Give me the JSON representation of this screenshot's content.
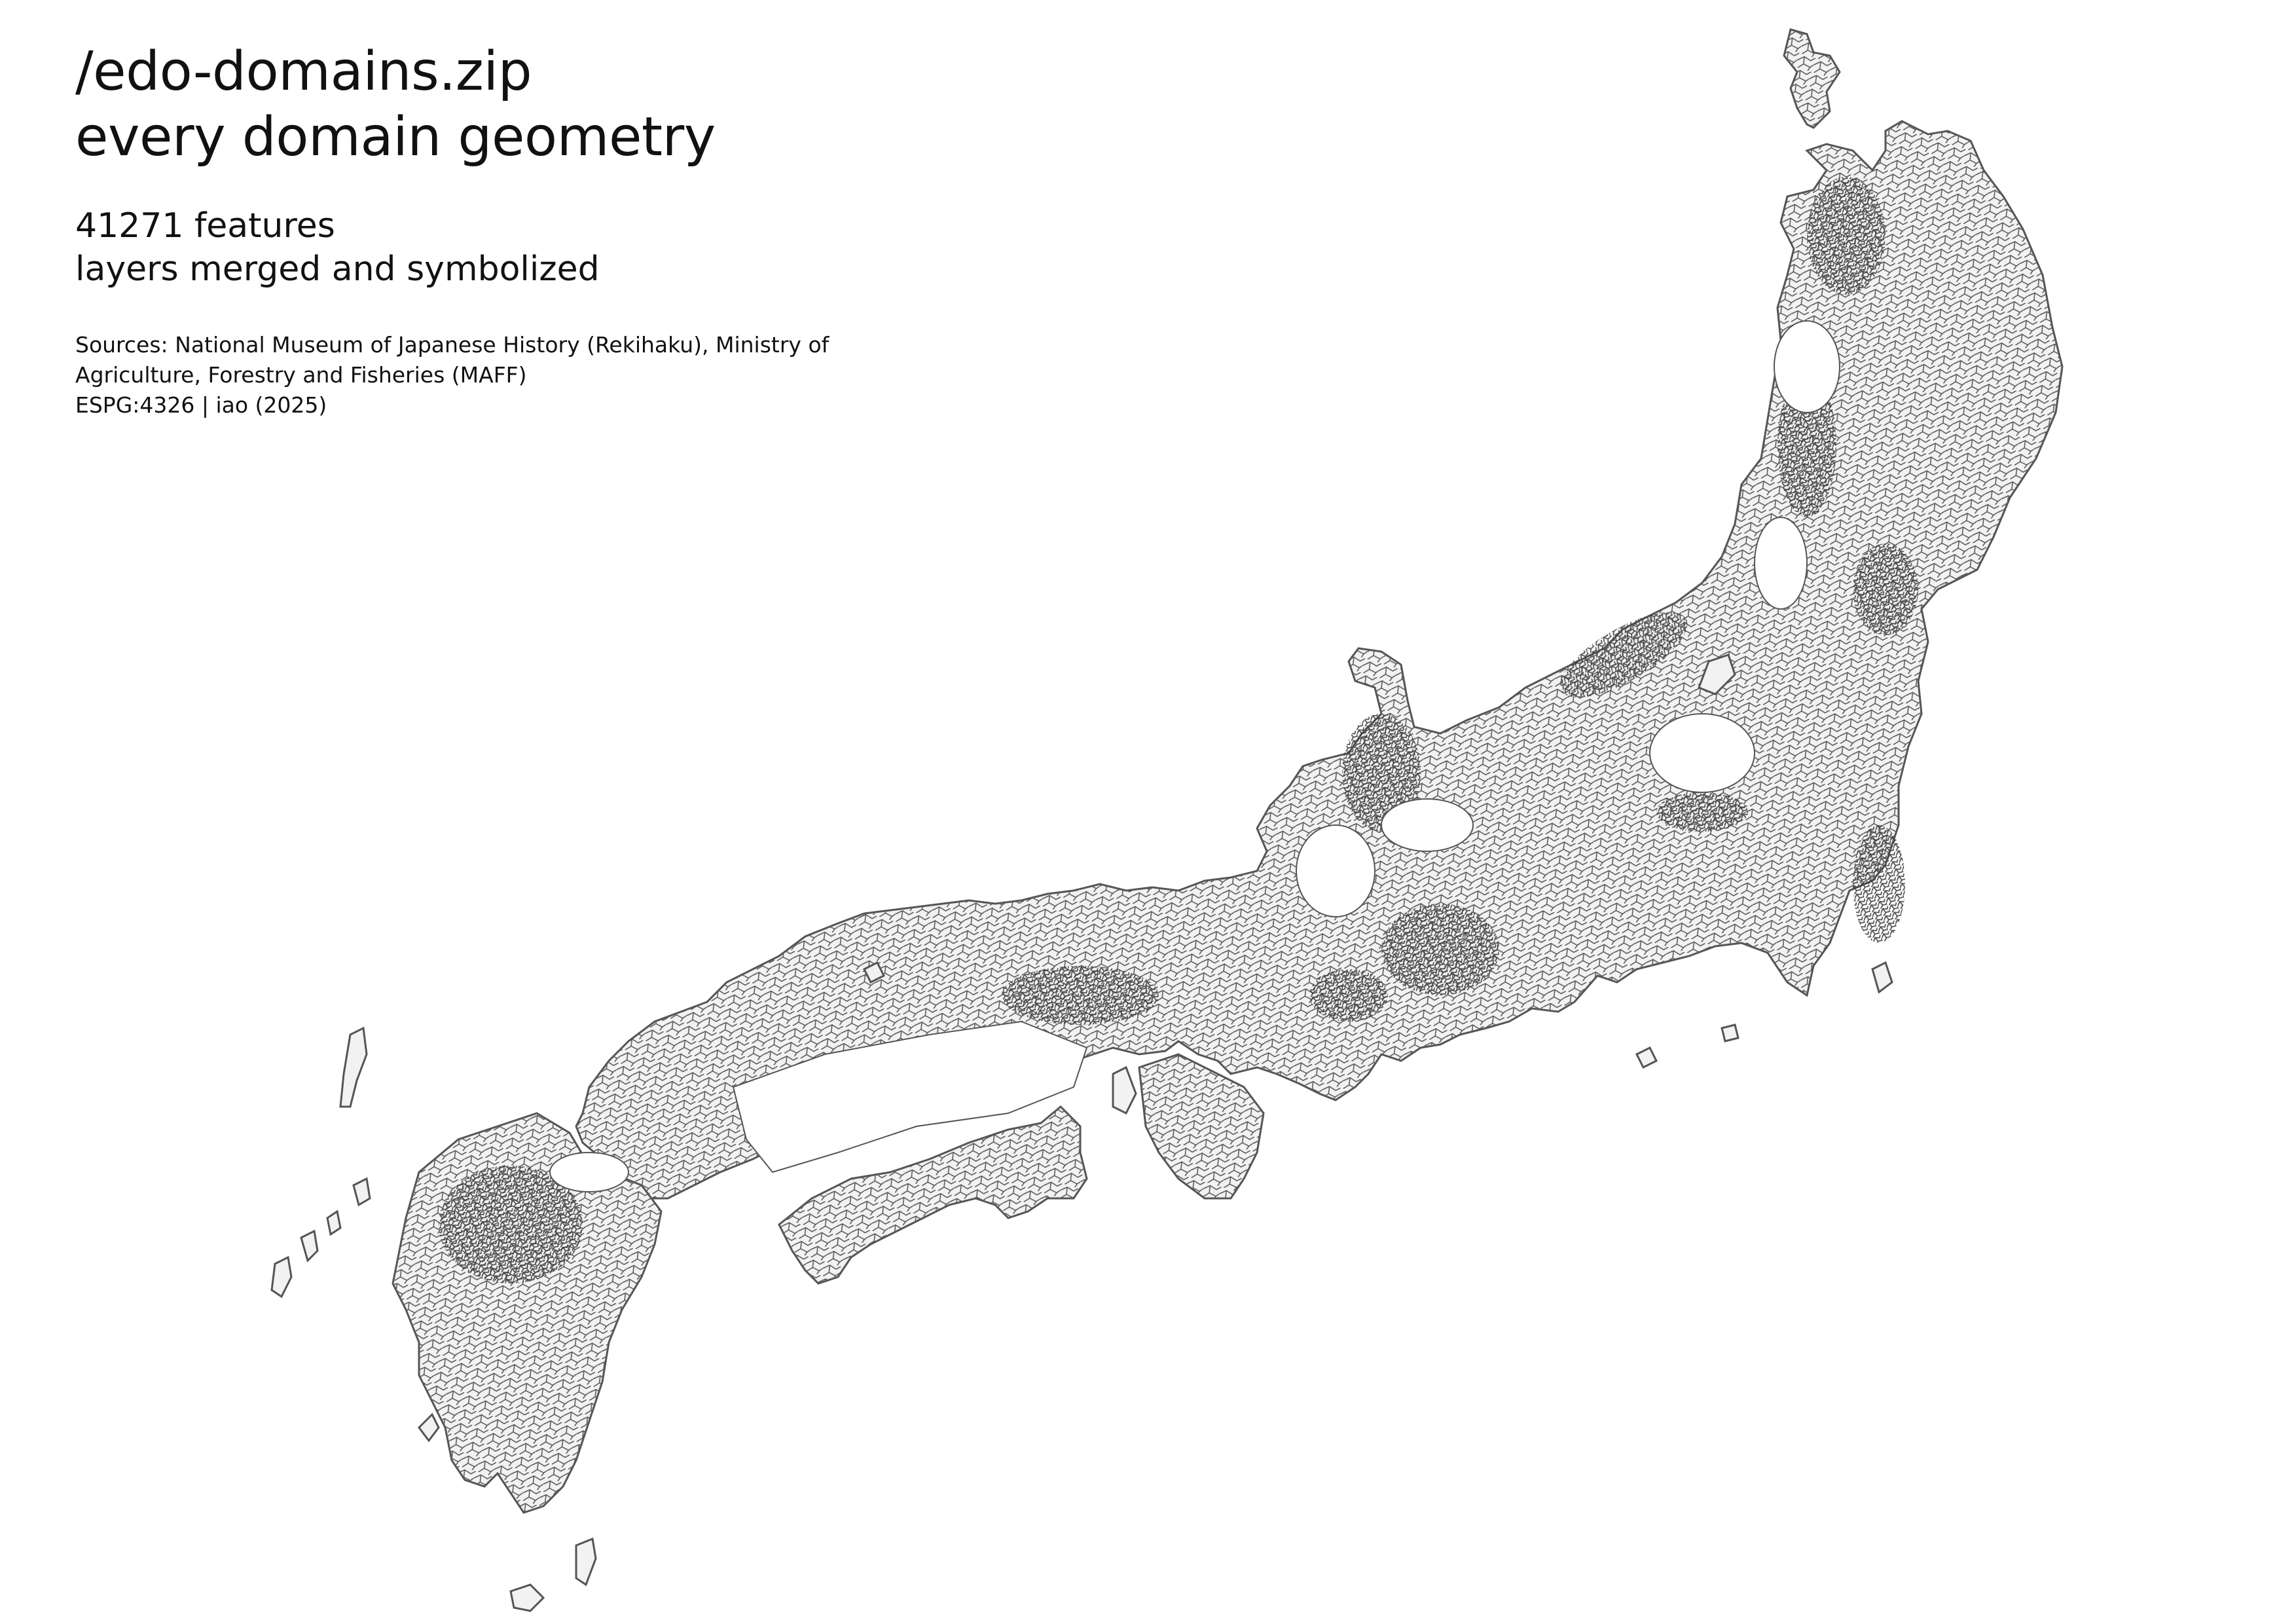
{
  "header": {
    "title_line_1": "/edo-domains.zip",
    "title_line_2": "every domain geometry",
    "subtitle_line_1": "41271 features",
    "subtitle_line_2": "layers merged and symbolized",
    "sources_line_1": "Sources: National Museum of Japanese History (Rekihaku), Ministry of",
    "sources_line_2": "Agriculture, Forestry and Fisheries (MAFF)",
    "sources_line_3": "ESPG:4326 | iao (2025)"
  },
  "map": {
    "region": "Japan (Honshu, Shikoku, Kyushu and islands)",
    "fill_color": "#f2f2f2",
    "stroke_color": "#555555",
    "dense_stroke_color": "#444444",
    "background_color": "#ffffff"
  }
}
